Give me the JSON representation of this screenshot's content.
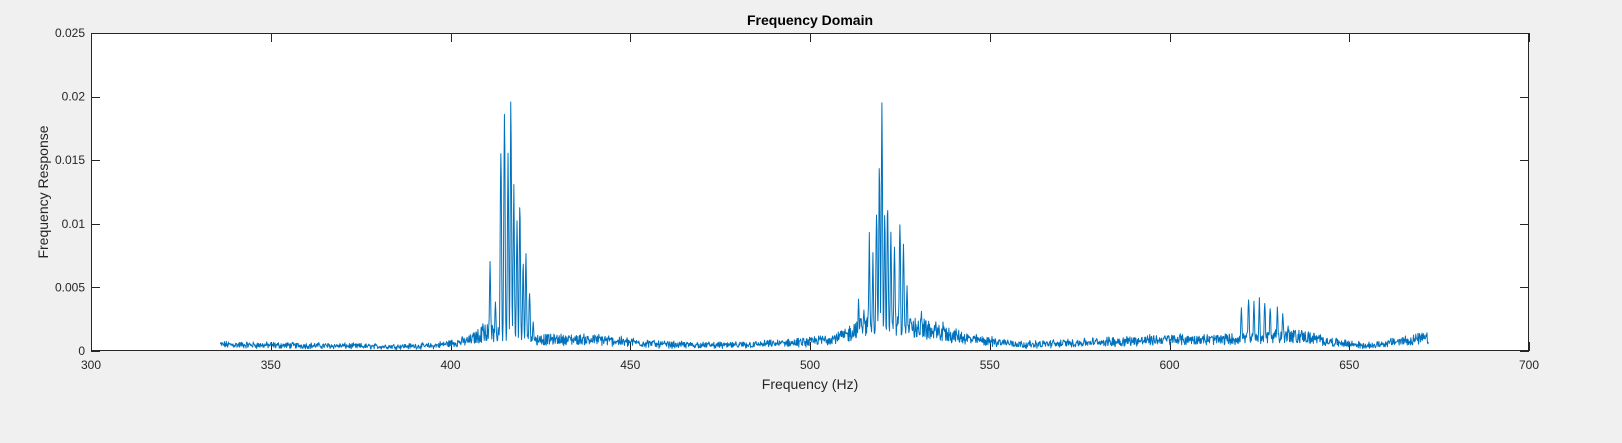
{
  "chart_data": {
    "type": "line",
    "title": "Frequency Domain",
    "xlabel": "Frequency (Hz)",
    "ylabel": "Frequency Response",
    "xlim": [
      300,
      700
    ],
    "ylim": [
      0,
      0.025
    ],
    "xticks": [
      "300",
      "350",
      "400",
      "450",
      "500",
      "550",
      "600",
      "650",
      "700"
    ],
    "yticks": [
      "0",
      "0.005",
      "0.01",
      "0.015",
      "0.02",
      "0.025"
    ],
    "grid": false,
    "legend": "none",
    "color": "#0072bd",
    "series": [
      {
        "x_range": [
          336,
          672
        ],
        "baseline": [
          [
            336,
            0.0005
          ],
          [
            350,
            0.00045
          ],
          [
            370,
            0.0004
          ],
          [
            380,
            0.00035
          ],
          [
            395,
            0.0004
          ],
          [
            405,
            0.0008
          ],
          [
            410,
            0.0015
          ],
          [
            424,
            0.0009
          ],
          [
            440,
            0.0009
          ],
          [
            460,
            0.0005
          ],
          [
            480,
            0.00045
          ],
          [
            500,
            0.0007
          ],
          [
            510,
            0.0012
          ],
          [
            514,
            0.002
          ],
          [
            530,
            0.0018
          ],
          [
            545,
            0.0009
          ],
          [
            560,
            0.0005
          ],
          [
            580,
            0.0007
          ],
          [
            600,
            0.0009
          ],
          [
            615,
            0.0009
          ],
          [
            636,
            0.0012
          ],
          [
            645,
            0.0007
          ],
          [
            655,
            0.0004
          ],
          [
            665,
            0.0008
          ],
          [
            672,
            0.001
          ]
        ],
        "peaks": [
          [
            409,
            0.0024
          ],
          [
            411,
            0.0073
          ],
          [
            412.5,
            0.0045
          ],
          [
            414,
            0.0178
          ],
          [
            415,
            0.0209
          ],
          [
            416,
            0.0166
          ],
          [
            416.8,
            0.0212
          ],
          [
            417.6,
            0.0135
          ],
          [
            418.5,
            0.0106
          ],
          [
            419.3,
            0.0118
          ],
          [
            420.2,
            0.0072
          ],
          [
            421,
            0.008
          ],
          [
            422,
            0.005
          ],
          [
            423,
            0.0026
          ],
          [
            513.5,
            0.0041
          ],
          [
            515,
            0.0035
          ],
          [
            516.5,
            0.0094
          ],
          [
            517.5,
            0.0079
          ],
          [
            518.5,
            0.0122
          ],
          [
            519.3,
            0.0161
          ],
          [
            520,
            0.0196
          ],
          [
            520.8,
            0.0114
          ],
          [
            521.6,
            0.0125
          ],
          [
            522.5,
            0.0098
          ],
          [
            523.5,
            0.0092
          ],
          [
            525,
            0.0112
          ],
          [
            526,
            0.0098
          ],
          [
            527,
            0.0055
          ],
          [
            528,
            0.0029
          ],
          [
            531,
            0.0033
          ],
          [
            535,
            0.0025
          ],
          [
            537,
            0.0024
          ],
          [
            620,
            0.0035
          ],
          [
            622,
            0.0044
          ],
          [
            623.5,
            0.0041
          ],
          [
            625,
            0.0043
          ],
          [
            626.5,
            0.0042
          ],
          [
            628,
            0.0038
          ],
          [
            630,
            0.0036
          ],
          [
            631.5,
            0.0033
          ],
          [
            633,
            0.0022
          ],
          [
            635,
            0.0018
          ]
        ],
        "noise_amplitude": 0.00035
      }
    ]
  }
}
